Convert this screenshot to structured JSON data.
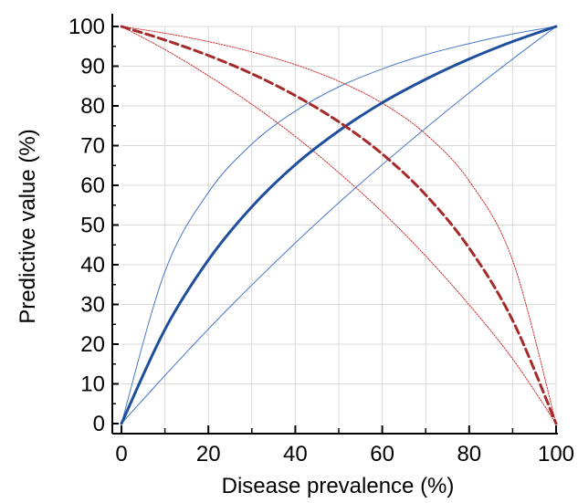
{
  "chart_data": {
    "type": "line",
    "title": "",
    "xlabel": "Disease prevalence (%)",
    "ylabel": "Predictive value (%)",
    "xlim": [
      0,
      100
    ],
    "ylim": [
      0,
      100
    ],
    "xticks": [
      0,
      20,
      40,
      60,
      80,
      100
    ],
    "xticks_minor": [
      10,
      30,
      50,
      70,
      90
    ],
    "yticks": [
      0,
      10,
      20,
      30,
      40,
      50,
      60,
      70,
      80,
      90,
      100
    ],
    "grid": true,
    "legend": "none",
    "x": [
      0,
      10,
      20,
      30,
      40,
      50,
      60,
      70,
      80,
      90,
      100
    ],
    "series": [
      {
        "color": "#1f4e9c",
        "style": "solid-thick",
        "values": [
          0,
          23.7,
          41.2,
          54.6,
          65.2,
          73.7,
          80.8,
          86.7,
          91.8,
          96.2,
          100
        ]
      },
      {
        "color": "#4a78c8",
        "style": "solid-thin",
        "values": [
          0,
          38.3,
          58.2,
          70.4,
          78.7,
          84.8,
          89.3,
          92.9,
          95.7,
          98.1,
          100
        ]
      },
      {
        "color": "#4a78c8",
        "style": "solid-thin",
        "values": [
          0,
          12.1,
          23.8,
          34.9,
          45.5,
          55.6,
          65.2,
          74.4,
          83.3,
          91.8,
          100
        ]
      },
      {
        "color": "#a52a2a",
        "style": "dashed-thick",
        "values": [
          100,
          96.6,
          92.7,
          88.1,
          82.6,
          76.0,
          67.9,
          57.6,
          44.2,
          26.0,
          0
        ]
      },
      {
        "color": "#cc3030",
        "style": "dotted-thin",
        "values": [
          100,
          98.3,
          96.2,
          93.6,
          90.4,
          86.2,
          80.7,
          72.9,
          61.1,
          41.1,
          0
        ]
      },
      {
        "color": "#cc3030",
        "style": "dotted-thin",
        "values": [
          100,
          94.2,
          87.6,
          80.4,
          72.3,
          63.2,
          53.3,
          42.2,
          29.9,
          16.3,
          0
        ]
      }
    ]
  }
}
